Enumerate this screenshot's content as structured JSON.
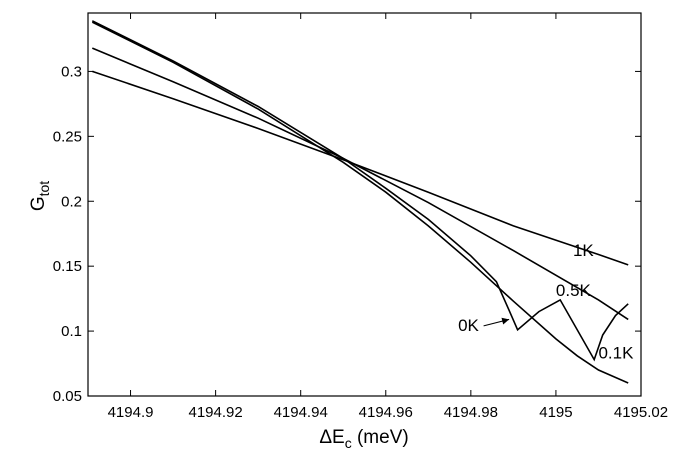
{
  "chart_data": {
    "type": "line",
    "xlabel": "ΔE",
    "xlabel_sub": "c",
    "xlabel_unit": " (meV)",
    "ylabel": "G",
    "ylabel_sub": "tot",
    "xlim": [
      4194.89,
      4195.02
    ],
    "ylim": [
      0.05,
      0.345
    ],
    "x_ticks": [
      4194.9,
      4194.92,
      4194.94,
      4194.96,
      4194.98,
      4195,
      4195.02
    ],
    "x_tick_labels": [
      "4194.9",
      "4194.92",
      "4194.94",
      "4194.96",
      "4194.98",
      "4195",
      "4195.02"
    ],
    "y_ticks": [
      0.05,
      0.1,
      0.15,
      0.2,
      0.25,
      0.3
    ],
    "y_tick_labels": [
      "0.05",
      "0.1",
      "0.15",
      "0.2",
      "0.25",
      "0.3"
    ],
    "grid": false,
    "legend": "none",
    "series": [
      {
        "name": "1K",
        "x": [
          4194.891,
          4194.91,
          4194.93,
          4194.95,
          4194.97,
          4194.99,
          4195.01,
          4195.017
        ],
        "y": [
          0.3,
          0.279,
          0.256,
          0.232,
          0.207,
          0.181,
          0.159,
          0.151
        ]
      },
      {
        "name": "0.5K",
        "x": [
          4194.891,
          4194.91,
          4194.93,
          4194.95,
          4194.97,
          4194.99,
          4195.01,
          4195.017
        ],
        "y": [
          0.318,
          0.292,
          0.264,
          0.233,
          0.199,
          0.162,
          0.124,
          0.109
        ]
      },
      {
        "name": "0.1K",
        "x": [
          4194.891,
          4194.91,
          4194.93,
          4194.95,
          4194.96,
          4194.97,
          4194.98,
          4194.99,
          4195.0,
          4195.005,
          4195.01,
          4195.017
        ],
        "y": [
          0.338,
          0.307,
          0.271,
          0.23,
          0.207,
          0.181,
          0.153,
          0.123,
          0.094,
          0.081,
          0.07,
          0.06
        ]
      },
      {
        "name": "0K",
        "x": [
          4194.891,
          4194.91,
          4194.93,
          4194.95,
          4194.96,
          4194.97,
          4194.98,
          4194.986,
          4194.989,
          4194.991,
          4194.996,
          4195.001,
          4195.009,
          4195.011,
          4195.014,
          4195.017
        ],
        "y": [
          0.339,
          0.308,
          0.273,
          0.233,
          0.21,
          0.186,
          0.158,
          0.138,
          0.116,
          0.101,
          0.115,
          0.124,
          0.078,
          0.097,
          0.112,
          0.121
        ]
      }
    ],
    "annotations": [
      {
        "text": "1K",
        "x": 4195.004,
        "y": 0.158
      },
      {
        "text": "0.5K",
        "x": 4195.0,
        "y": 0.127
      },
      {
        "text": "0K",
        "x": 4194.977,
        "y": 0.1
      },
      {
        "text": "0.1K",
        "x": 4195.01,
        "y": 0.079
      }
    ],
    "arrow": {
      "label": "0K",
      "from": [
        4194.983,
        0.104
      ],
      "to": [
        4194.989,
        0.109
      ]
    }
  }
}
